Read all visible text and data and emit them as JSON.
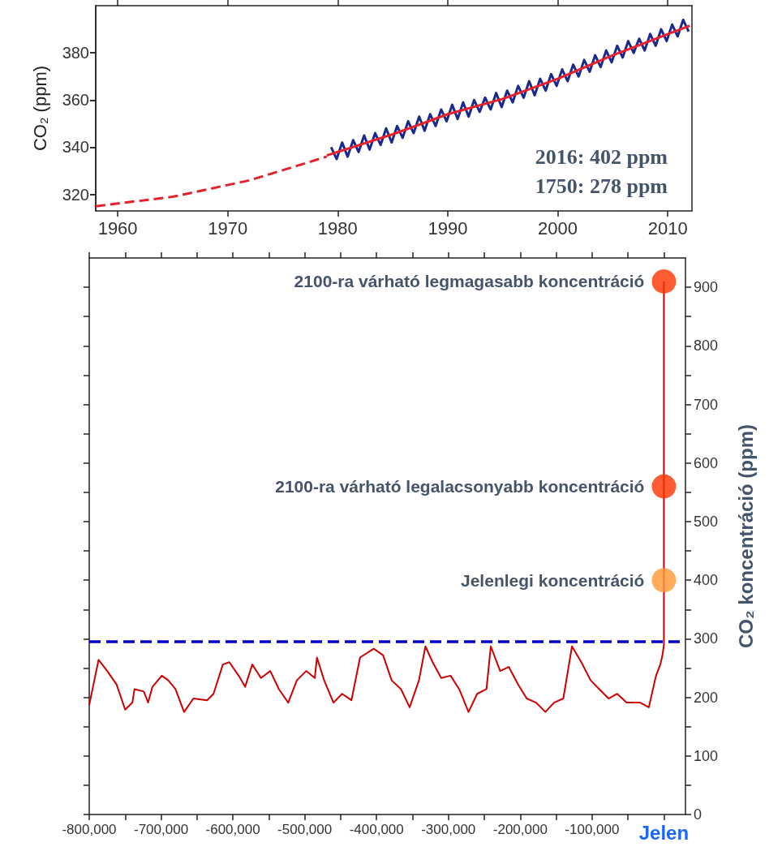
{
  "chart_data": [
    {
      "type": "line",
      "ylabel": "CO₂ (ppm)",
      "xlim": [
        1958,
        2012.2
      ],
      "xticks": [
        1960,
        1970,
        1980,
        1990,
        2000,
        2010
      ],
      "ylim": [
        313,
        400
      ],
      "yticks": [
        320,
        340,
        360,
        380
      ],
      "annotations": [
        "2016: 402 ppm",
        "1750: 278 ppm"
      ],
      "series": [
        {
          "color": "#e8202a",
          "line_style": "dashed",
          "x": [
            1958,
            1965,
            1972,
            1979
          ],
          "values": [
            315,
            319,
            326,
            336
          ]
        },
        {
          "color": "#1a2a8c",
          "x": [
            1979.4,
            1979.9,
            1980.4,
            1980.9,
            1981.4,
            1981.9,
            1982.4,
            1982.9,
            1983.4,
            1983.9,
            1984.4,
            1984.9,
            1985.4,
            1985.9,
            1986.4,
            1986.9,
            1987.4,
            1987.9,
            1988.4,
            1988.9,
            1989.4,
            1989.9,
            1990.4,
            1990.9,
            1991.4,
            1991.9,
            1992.4,
            1992.9,
            1993.4,
            1993.9,
            1994.4,
            1994.9,
            1995.4,
            1995.9,
            1996.4,
            1996.9,
            1997.4,
            1997.9,
            1998.4,
            1998.9,
            1999.4,
            1999.9,
            2000.4,
            2000.9,
            2001.4,
            2001.9,
            2002.4,
            2002.9,
            2003.4,
            2003.9,
            2004.4,
            2004.9,
            2005.4,
            2005.9,
            2006.4,
            2006.9,
            2007.4,
            2007.9,
            2008.4,
            2008.9,
            2009.4,
            2009.9,
            2010.4,
            2010.9,
            2011.4,
            2011.9
          ],
          "values": [
            340,
            335,
            342,
            336,
            343,
            338,
            345,
            339,
            346,
            341,
            348,
            342,
            349,
            344,
            351,
            346,
            353,
            347,
            354,
            349,
            356,
            351,
            358,
            352,
            359,
            353,
            360,
            355,
            361,
            356,
            363,
            357,
            364,
            359,
            366,
            361,
            368,
            362,
            369,
            364,
            371,
            366,
            373,
            368,
            375,
            370,
            377,
            372,
            379,
            374,
            381,
            376,
            383,
            378,
            385,
            380,
            386,
            381,
            388,
            383,
            390,
            385,
            392,
            387,
            394,
            389
          ]
        },
        {
          "color": "#e8202a",
          "x": [
            1979,
            1985,
            1990,
            1995,
            2000,
            2005,
            2012
          ],
          "values": [
            336.5,
            345.5,
            354,
            360.5,
            369,
            379,
            391.5
          ]
        }
      ]
    },
    {
      "type": "line",
      "y2label": "CO₂ koncentráció (ppm)",
      "xlim": [
        -800000,
        30000
      ],
      "xticks": [
        {
          "value": -800000,
          "label": "-800,000"
        },
        {
          "value": -750000,
          "label": null
        },
        {
          "value": -700000,
          "label": "-700,000"
        },
        {
          "value": -650000,
          "label": null
        },
        {
          "value": -600000,
          "label": "-600,000"
        },
        {
          "value": -550000,
          "label": null
        },
        {
          "value": -500000,
          "label": "-500,000"
        },
        {
          "value": -450000,
          "label": null
        },
        {
          "value": -400000,
          "label": "-400,000"
        },
        {
          "value": -350000,
          "label": null
        },
        {
          "value": -300000,
          "label": "-300,000"
        },
        {
          "value": -250000,
          "label": null
        },
        {
          "value": -200000,
          "label": "-200,000"
        },
        {
          "value": -150000,
          "label": null
        },
        {
          "value": -100000,
          "label": "-100,000"
        },
        {
          "value": -50000,
          "label": null
        },
        {
          "value": 0,
          "label": "Jelen"
        }
      ],
      "y2lim": [
        0,
        950
      ],
      "y2ticks": [
        0,
        {
          "value": 50,
          "label": null
        },
        100,
        {
          "value": 150,
          "label": null
        },
        200,
        {
          "value": 250,
          "label": null
        },
        300,
        {
          "value": 350,
          "label": null
        },
        400,
        {
          "value": 450,
          "label": null
        },
        500,
        {
          "value": 550,
          "label": null
        },
        600,
        {
          "value": 650,
          "label": null
        },
        700,
        {
          "value": 750,
          "label": null
        },
        800,
        {
          "value": 850,
          "label": null
        },
        900
      ],
      "ref_lines": [
        {
          "axis": "y2",
          "value": 295,
          "color": "#0000cc",
          "line_style": "dashed"
        }
      ],
      "annotations": [
        "2100-ra várható legmagasabb koncentráció",
        "2100-ra várható legalacsonyabb koncentráció",
        "Jelenlegi koncentráció"
      ],
      "series": [
        {
          "color": "#cc0000",
          "axis": "y2",
          "x": [
            -800000,
            -787000,
            -775000,
            -762000,
            -750000,
            -740000,
            -737000,
            -724000,
            -718000,
            -712000,
            -699000,
            -690000,
            -680000,
            -668000,
            -655000,
            -636000,
            -627000,
            -614000,
            -605000,
            -592000,
            -583000,
            -573000,
            -561000,
            -548000,
            -536000,
            -523000,
            -511000,
            -498000,
            -486000,
            -483000,
            -473000,
            -460000,
            -448000,
            -435000,
            -423000,
            -404000,
            -391000,
            -379000,
            -366000,
            -354000,
            -341000,
            -332000,
            -322000,
            -310000,
            -297000,
            -285000,
            -272000,
            -260000,
            -247000,
            -241000,
            -228000,
            -216000,
            -203000,
            -191000,
            -178000,
            -165000,
            -153000,
            -140000,
            -128000,
            -115000,
            -102000,
            -90000,
            -77000,
            -65000,
            -52000,
            -33000,
            -21000,
            -11000,
            -5000,
            -2000,
            0,
            0
          ],
          "values": [
            187,
            264,
            245,
            222,
            179,
            191,
            214,
            210,
            191,
            218,
            237,
            229,
            214,
            175,
            198,
            195,
            206,
            256,
            260,
            237,
            218,
            256,
            233,
            245,
            214,
            191,
            229,
            245,
            233,
            268,
            229,
            191,
            206,
            195,
            268,
            283,
            272,
            229,
            214,
            183,
            229,
            287,
            260,
            233,
            237,
            214,
            175,
            206,
            214,
            287,
            245,
            252,
            222,
            198,
            191,
            175,
            191,
            198,
            287,
            260,
            229,
            214,
            198,
            206,
            191,
            191,
            183,
            237,
            256,
            272,
            290,
            910
          ]
        },
        {
          "type": "scatter",
          "axis": "y2",
          "marker": "circle",
          "x": [
            0,
            0,
            0
          ],
          "values": [
            910,
            560,
            400
          ],
          "colors": [
            "#ff3300",
            "#ff3300",
            "#ff9933"
          ]
        }
      ]
    }
  ]
}
